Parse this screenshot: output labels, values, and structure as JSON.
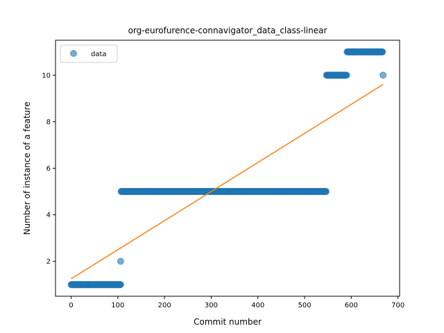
{
  "chart_data": {
    "type": "scatter",
    "title": "org-eurofurence-connavigator_data_class-linear",
    "xlabel": "Commit number",
    "ylabel": "Number of instance of a feature",
    "xlim": [
      -33.5,
      703.5
    ],
    "ylim": [
      0.5,
      11.5
    ],
    "xticks": [
      0,
      100,
      200,
      300,
      400,
      500,
      600,
      700
    ],
    "yticks": [
      2,
      4,
      6,
      8,
      10
    ],
    "grid": false,
    "legend": {
      "position": "top-left",
      "entries": [
        "data"
      ]
    },
    "colors": {
      "data": "#1f77b4",
      "fit": "#ff7f0e"
    },
    "series": [
      {
        "name": "data",
        "kind": "scatter",
        "segments": [
          {
            "x_start": 0,
            "x_end": 106,
            "y": 1
          },
          {
            "x_start": 106,
            "x_end": 106,
            "y": 2
          },
          {
            "x_start": 107,
            "x_end": 546,
            "y": 5
          },
          {
            "x_start": 547,
            "x_end": 590,
            "y": 10
          },
          {
            "x_start": 591,
            "x_end": 667,
            "y": 11
          },
          {
            "x_start": 668,
            "x_end": 668,
            "y": 10
          }
        ]
      },
      {
        "kind": "line",
        "x": [
          0,
          668
        ],
        "y": [
          1.25,
          9.6
        ]
      }
    ]
  }
}
